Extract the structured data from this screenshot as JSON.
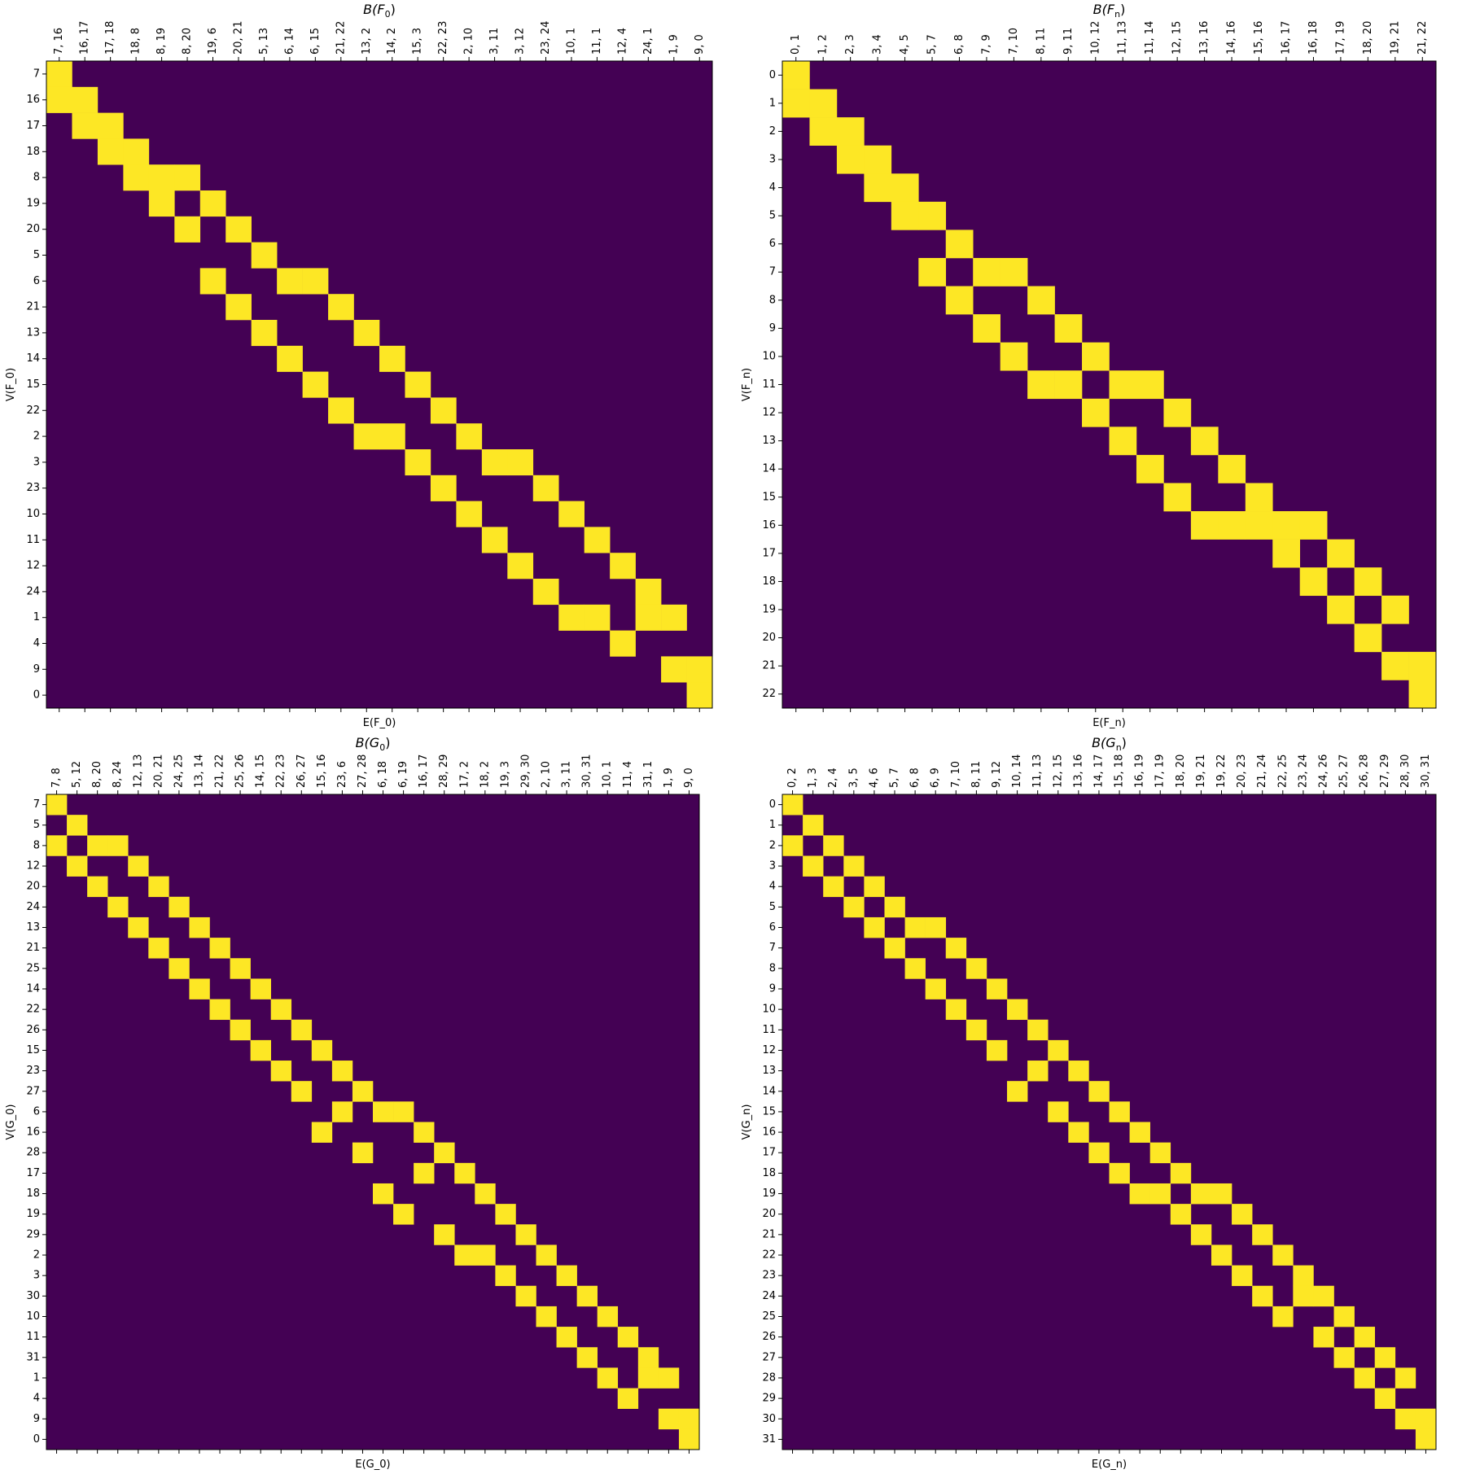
{
  "figure": {
    "colors": {
      "zero": "#440154",
      "one": "#fde725",
      "frame": "#000000"
    }
  },
  "chart_data": [
    {
      "type": "heatmap",
      "title": "B(F_0)",
      "title_base": "B(F",
      "title_sub": "0",
      "title_end": ")",
      "xlabel": "E(F_0)",
      "ylabel": "V(F_0)",
      "rows": [
        "7",
        "16",
        "17",
        "18",
        "8",
        "19",
        "20",
        "5",
        "6",
        "21",
        "13",
        "14",
        "15",
        "22",
        "2",
        "3",
        "23",
        "10",
        "11",
        "12",
        "24",
        "1",
        "4",
        "9",
        "0"
      ],
      "cols": [
        "7, 16",
        "16, 17",
        "17, 18",
        "18, 8",
        "8, 19",
        "8, 20",
        "19, 6",
        "20, 21",
        "5, 13",
        "6, 14",
        "6, 15",
        "21, 22",
        "13, 2",
        "14, 2",
        "15, 3",
        "22, 23",
        "2, 10",
        "3, 11",
        "3, 12",
        "23, 24",
        "10, 1",
        "11, 1",
        "12, 4",
        "24, 1",
        "1, 9",
        "9, 0"
      ],
      "values": "incidence: cell = 1 where row vertex is an endpoint of column edge, else 0"
    },
    {
      "type": "heatmap",
      "title": "B(F_n)",
      "title_base": "B(F",
      "title_sub": "n",
      "title_end": ")",
      "xlabel": "E(F_n)",
      "ylabel": "V(F_n)",
      "rows": [
        "0",
        "1",
        "2",
        "3",
        "4",
        "5",
        "6",
        "7",
        "8",
        "9",
        "10",
        "11",
        "12",
        "13",
        "14",
        "15",
        "16",
        "17",
        "18",
        "19",
        "20",
        "21",
        "22"
      ],
      "cols": [
        "0, 1",
        "1, 2",
        "2, 3",
        "3, 4",
        "4, 5",
        "5, 7",
        "6, 8",
        "7, 9",
        "7, 10",
        "8, 11",
        "9, 11",
        "10, 12",
        "11, 13",
        "11, 14",
        "12, 15",
        "13, 16",
        "14, 16",
        "15, 16",
        "16, 17",
        "16, 18",
        "17, 19",
        "18, 20",
        "19, 21",
        "21, 22"
      ],
      "values": "incidence: cell = 1 where row vertex is an endpoint of column edge, else 0"
    },
    {
      "type": "heatmap",
      "title": "B(G_0)",
      "title_base": "B(G",
      "title_sub": "0",
      "title_end": ")",
      "xlabel": "E(G_0)",
      "ylabel": "V(G_0)",
      "rows": [
        "7",
        "5",
        "8",
        "12",
        "20",
        "24",
        "13",
        "21",
        "25",
        "14",
        "22",
        "26",
        "15",
        "23",
        "27",
        "6",
        "16",
        "28",
        "17",
        "18",
        "19",
        "29",
        "2",
        "3",
        "30",
        "10",
        "11",
        "31",
        "1",
        "4",
        "9",
        "0"
      ],
      "cols": [
        "7, 8",
        "5, 12",
        "8, 20",
        "8, 24",
        "12, 13",
        "20, 21",
        "24, 25",
        "13, 14",
        "21, 22",
        "25, 26",
        "14, 15",
        "22, 23",
        "26, 27",
        "15, 16",
        "23, 6",
        "27, 28",
        "6, 18",
        "6, 19",
        "16, 17",
        "28, 29",
        "17, 2",
        "18, 2",
        "19, 3",
        "29, 30",
        "2, 10",
        "3, 11",
        "30, 31",
        "10, 1",
        "11, 4",
        "31, 1",
        "1, 9",
        "9, 0"
      ],
      "values": "incidence: cell = 1 where row vertex is an endpoint of column edge, else 0"
    },
    {
      "type": "heatmap",
      "title": "B(G_n)",
      "title_base": "B(G",
      "title_sub": "n",
      "title_end": ")",
      "xlabel": "E(G_n)",
      "ylabel": "V(G_n)",
      "rows": [
        "0",
        "1",
        "2",
        "3",
        "4",
        "5",
        "6",
        "7",
        "8",
        "9",
        "10",
        "11",
        "12",
        "13",
        "14",
        "15",
        "16",
        "17",
        "18",
        "19",
        "20",
        "21",
        "22",
        "23",
        "24",
        "25",
        "26",
        "27",
        "28",
        "29",
        "30",
        "31"
      ],
      "cols": [
        "0, 2",
        "1, 3",
        "2, 4",
        "3, 5",
        "4, 6",
        "5, 7",
        "6, 8",
        "6, 9",
        "7, 10",
        "8, 11",
        "9, 12",
        "10, 14",
        "11, 13",
        "12, 15",
        "13, 16",
        "14, 17",
        "15, 18",
        "16, 19",
        "17, 19",
        "18, 20",
        "19, 21",
        "19, 22",
        "20, 23",
        "21, 24",
        "22, 25",
        "23, 24",
        "24, 26",
        "25, 27",
        "26, 28",
        "27, 29",
        "28, 30",
        "30, 31"
      ],
      "values": "incidence: cell = 1 where row vertex is an endpoint of column edge, else 0"
    }
  ]
}
